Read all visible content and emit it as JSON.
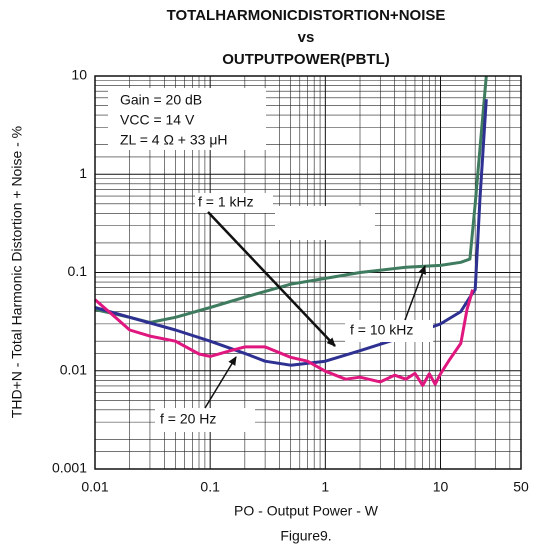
{
  "chart_data": {
    "type": "line",
    "title": [
      "TOTALHARMONICDISTORTION+NOISE",
      "vs",
      "OUTPUTPOWER(PBTL)"
    ],
    "x_label": "PO - Output Power - W",
    "y_label": "THD+N - Total Harmonic Distortion + Noise - %",
    "caption": "Figure9.",
    "conditions": [
      "Gain = 20 dB",
      "VCC = 14 V",
      "ZL = 4 Ω + 33 μH"
    ],
    "annotations": [
      "f = 1 kHz",
      "f = 10 kHz",
      "f = 20 Hz"
    ],
    "log_x": true,
    "log_y": true,
    "grid": true,
    "xlim": [
      0.01,
      50
    ],
    "xticks": [
      0.01,
      0.1,
      1,
      10,
      50
    ],
    "ylim": [
      0.001,
      10
    ],
    "yticks": [
      0.001,
      0.01,
      0.1,
      1,
      10
    ],
    "series": [
      {
        "name": "f = 10 kHz",
        "color": "#3f7b5f",
        "x": [
          0.01,
          0.02,
          0.03,
          0.05,
          0.1,
          0.2,
          0.5,
          1,
          2,
          5,
          10,
          15,
          18,
          20,
          22,
          25
        ],
        "values": [
          0.042,
          0.035,
          0.031,
          0.035,
          0.044,
          0.056,
          0.076,
          0.087,
          0.1,
          0.113,
          0.118,
          0.127,
          0.137,
          0.5,
          1.8,
          10
        ]
      },
      {
        "name": "f = 1 kHz",
        "color": "#2e3192",
        "x": [
          0.01,
          0.02,
          0.05,
          0.1,
          0.2,
          0.3,
          0.5,
          1,
          2,
          5,
          10,
          15,
          18,
          20,
          22,
          25
        ],
        "values": [
          0.044,
          0.035,
          0.026,
          0.02,
          0.015,
          0.0125,
          0.0114,
          0.0125,
          0.016,
          0.0225,
          0.03,
          0.04,
          0.056,
          0.067,
          0.55,
          5.8
        ]
      },
      {
        "name": "f = 20 Hz",
        "color": "#e0177f",
        "x": [
          0.01,
          0.015,
          0.02,
          0.03,
          0.05,
          0.08,
          0.1,
          0.15,
          0.2,
          0.3,
          0.5,
          0.7,
          1,
          1.5,
          2,
          3,
          4,
          5,
          6,
          7,
          8,
          9,
          10,
          12,
          15,
          17,
          18,
          19
        ],
        "values": [
          0.053,
          0.035,
          0.026,
          0.0225,
          0.02,
          0.0148,
          0.014,
          0.016,
          0.0175,
          0.0175,
          0.0137,
          0.0125,
          0.0099,
          0.0082,
          0.0086,
          0.0077,
          0.009,
          0.0082,
          0.0094,
          0.0071,
          0.0093,
          0.0073,
          0.0093,
          0.013,
          0.019,
          0.042,
          0.053,
          0.067
        ]
      }
    ]
  }
}
